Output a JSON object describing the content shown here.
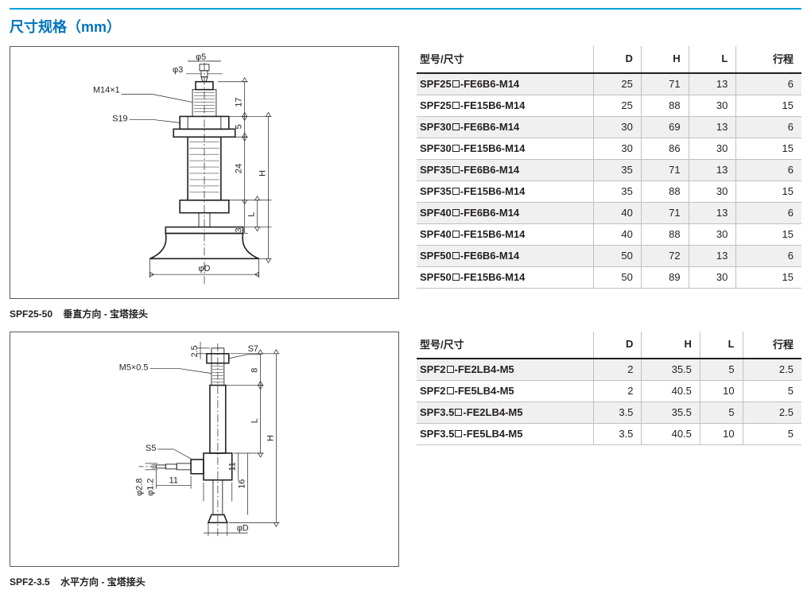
{
  "page": {
    "title": "尺寸规格（mm）",
    "accent_color": "#00a0dc",
    "title_color": "#0074bc"
  },
  "diagram1": {
    "caption_prefix": "SPF25-50",
    "caption_suffix": "垂直方向 - 宝塔接头",
    "labels": {
      "phi5": "φ5",
      "phi3": "φ3",
      "m14": "M14×1",
      "s19": "S19",
      "h17": "17",
      "h24": "24",
      "h5": "5",
      "h3": "3",
      "H": "H",
      "L": "L",
      "phiD": "φD"
    }
  },
  "diagram2": {
    "caption_prefix": "SPF2-3.5",
    "caption_suffix": "水平方向 - 宝塔接头",
    "labels": {
      "s7": "S7",
      "m5": "M5×0.5",
      "h25": "2.5",
      "h8": "8",
      "L": "L",
      "H": "H",
      "s5": "S5",
      "h11a": "11",
      "h11b": "11",
      "h16": "16",
      "phi28": "φ2.8",
      "phi12": "φ1.2",
      "phiD": "φD"
    }
  },
  "table1": {
    "header": {
      "model": "型号/尺寸",
      "D": "D",
      "H": "H",
      "L": "L",
      "stroke": "行程"
    },
    "rows": [
      {
        "model": "SPF25□-FE6B6-M14",
        "D": "25",
        "H": "71",
        "L": "13",
        "stroke": "6"
      },
      {
        "model": "SPF25□-FE15B6-M14",
        "D": "25",
        "H": "88",
        "L": "30",
        "stroke": "15"
      },
      {
        "model": "SPF30□-FE6B6-M14",
        "D": "30",
        "H": "69",
        "L": "13",
        "stroke": "6"
      },
      {
        "model": "SPF30□-FE15B6-M14",
        "D": "30",
        "H": "86",
        "L": "30",
        "stroke": "15"
      },
      {
        "model": "SPF35□-FE6B6-M14",
        "D": "35",
        "H": "71",
        "L": "13",
        "stroke": "6"
      },
      {
        "model": "SPF35□-FE15B6-M14",
        "D": "35",
        "H": "88",
        "L": "30",
        "stroke": "15"
      },
      {
        "model": "SPF40□-FE6B6-M14",
        "D": "40",
        "H": "71",
        "L": "13",
        "stroke": "6"
      },
      {
        "model": "SPF40□-FE15B6-M14",
        "D": "40",
        "H": "88",
        "L": "30",
        "stroke": "15"
      },
      {
        "model": "SPF50□-FE6B6-M14",
        "D": "50",
        "H": "72",
        "L": "13",
        "stroke": "6"
      },
      {
        "model": "SPF50□-FE15B6-M14",
        "D": "50",
        "H": "89",
        "L": "30",
        "stroke": "15"
      }
    ]
  },
  "table2": {
    "header": {
      "model": "型号/尺寸",
      "D": "D",
      "H": "H",
      "L": "L",
      "stroke": "行程"
    },
    "rows": [
      {
        "model": "SPF2□-FE2LB4-M5",
        "D": "2",
        "H": "35.5",
        "L": "5",
        "stroke": "2.5"
      },
      {
        "model": "SPF2□-FE5LB4-M5",
        "D": "2",
        "H": "40.5",
        "L": "10",
        "stroke": "5"
      },
      {
        "model": "SPF3.5□-FE2LB4-M5",
        "D": "3.5",
        "H": "35.5",
        "L": "5",
        "stroke": "2.5"
      },
      {
        "model": "SPF3.5□-FE5LB4-M5",
        "D": "3.5",
        "H": "40.5",
        "L": "10",
        "stroke": "5"
      }
    ]
  }
}
